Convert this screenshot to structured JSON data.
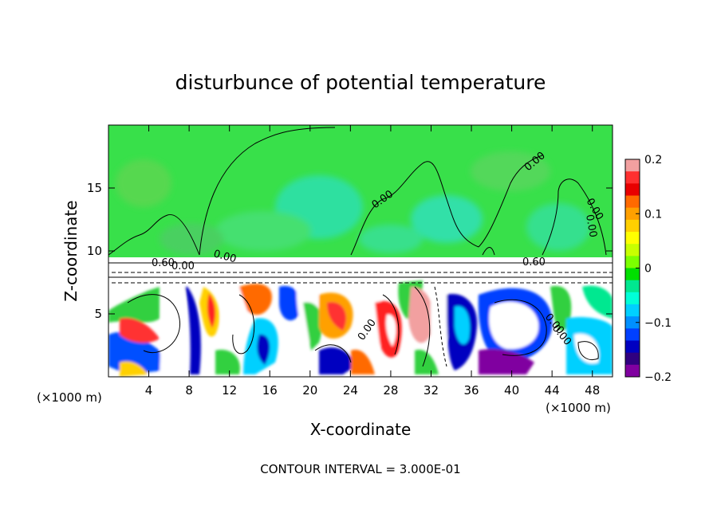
{
  "chart_data": {
    "type": "heatmap",
    "title": "disturbunce of potential temperature",
    "xlabel": "X-coordinate",
    "ylabel": "Z-coordinate",
    "x_unit_label": "(×1000 m)",
    "z_unit_label": "(×1000 m)",
    "xlim": [
      0,
      50
    ],
    "ylim": [
      0,
      20
    ],
    "x_ticks": [
      4,
      8,
      12,
      16,
      20,
      24,
      28,
      32,
      36,
      40,
      44,
      48
    ],
    "y_ticks": [
      5,
      10,
      15
    ],
    "colorbar": {
      "range": [
        -0.2,
        0.2
      ],
      "tick_labels": [
        "0.2",
        "0.1",
        "0",
        "−0.1",
        "−0.2"
      ],
      "tick_values": [
        0.2,
        0.1,
        0,
        -0.1,
        -0.2
      ],
      "colors": [
        "#f2a0a0",
        "#ff3030",
        "#e80000",
        "#ff6a00",
        "#ffa000",
        "#ffd000",
        "#ffff00",
        "#c8ff00",
        "#7cff00",
        "#00e000",
        "#00e890",
        "#00ffd8",
        "#00d0ff",
        "#0090ff",
        "#0040ff",
        "#0000c0",
        "#300080",
        "#8000a0"
      ]
    },
    "contour_labels": [
      "0.00",
      "0.00",
      "0.00",
      "0.00",
      "0.00",
      "0.00",
      "0.00",
      "0.60",
      "0.60",
      "0.00",
      "0.00"
    ],
    "annotation": "CONTOUR INTERVAL = 3.000E-01"
  }
}
